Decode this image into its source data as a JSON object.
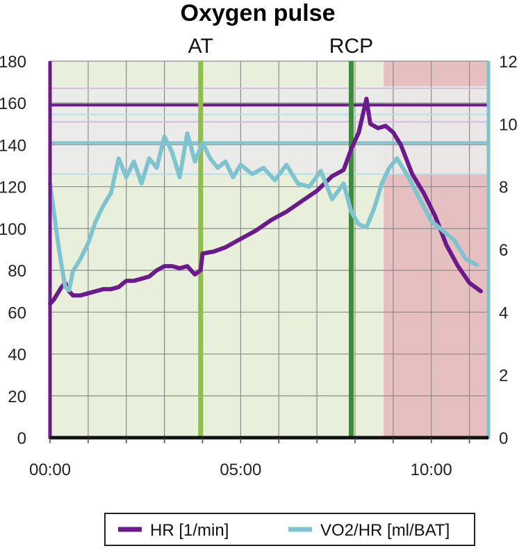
{
  "chart_data": {
    "type": "line",
    "title": "Oxygen pulse",
    "x_ticks": [
      "00:00",
      "05:00",
      "10:00"
    ],
    "x_range_minutes": [
      0,
      11.5
    ],
    "y_left": {
      "ylim": [
        0,
        180
      ],
      "ticks": [
        0,
        20,
        40,
        60,
        80,
        100,
        120,
        140,
        160,
        180
      ]
    },
    "y_right": {
      "ylim": [
        0,
        12
      ],
      "ticks": [
        0,
        2,
        4,
        6,
        8,
        10,
        12
      ]
    },
    "grid": true,
    "legend_position": "bottom",
    "zones": [
      {
        "from_min": 0,
        "to_min": 8.75,
        "color": "#e8f0dc"
      },
      {
        "from_min": 8.75,
        "to_min": 11.5,
        "color": "#e6c0c0"
      }
    ],
    "reference_bands": [
      {
        "axis": "left",
        "from": 126,
        "to": 168,
        "color": "#ebebeb"
      }
    ],
    "reference_lines": [
      {
        "axis": "left",
        "value": 159,
        "color": "#6a1a8a",
        "width": 4
      },
      {
        "axis": "left",
        "value": 167,
        "color": "#d8b8e4",
        "width": 2
      },
      {
        "axis": "left",
        "value": 151,
        "color": "#d8b8e4",
        "width": 2
      },
      {
        "axis": "right",
        "value": 9.4,
        "color": "#7ec4cf",
        "width": 4
      },
      {
        "axis": "right",
        "value": 10.3,
        "color": "#b9e0e6",
        "width": 2
      },
      {
        "axis": "right",
        "value": 8.4,
        "color": "#b9e0e6",
        "width": 2
      }
    ],
    "markers": [
      {
        "label": "AT",
        "x_min": 3.95,
        "color": "#8fc043"
      },
      {
        "label": "RCP",
        "x_min": 7.9,
        "color": "#3f8a3a"
      }
    ],
    "series": [
      {
        "name": "HR [1/min]",
        "axis": "left",
        "color": "#6a1a8a",
        "x": [
          0.0,
          0.1,
          0.2,
          0.3,
          0.4,
          0.5,
          0.6,
          0.8,
          1.0,
          1.2,
          1.4,
          1.6,
          1.8,
          2.0,
          2.2,
          2.4,
          2.6,
          2.8,
          3.0,
          3.2,
          3.4,
          3.6,
          3.8,
          3.95,
          4.0,
          4.3,
          4.6,
          5.0,
          5.4,
          5.8,
          6.2,
          6.6,
          7.0,
          7.4,
          7.7,
          7.9,
          8.1,
          8.2,
          8.3,
          8.4,
          8.6,
          8.8,
          9.0,
          9.2,
          9.5,
          9.8,
          10.1,
          10.4,
          10.7,
          11.0,
          11.3
        ],
        "values": [
          64,
          66,
          69,
          72,
          74,
          70,
          68,
          68,
          69,
          70,
          71,
          71,
          72,
          75,
          75,
          76,
          77,
          80,
          82,
          82,
          81,
          82,
          78,
          80,
          88,
          89,
          91,
          95,
          99,
          104,
          108,
          113,
          118,
          125,
          128,
          138,
          146,
          154,
          162,
          150,
          148,
          149,
          146,
          140,
          126,
          117,
          106,
          92,
          82,
          74,
          70
        ]
      },
      {
        "name": "VO2/HR [ml/BAT]",
        "axis": "right",
        "color": "#7ec4cf",
        "x": [
          0.0,
          0.1,
          0.2,
          0.3,
          0.4,
          0.5,
          0.6,
          0.8,
          1.0,
          1.2,
          1.4,
          1.6,
          1.8,
          2.0,
          2.2,
          2.4,
          2.6,
          2.8,
          3.0,
          3.2,
          3.4,
          3.6,
          3.8,
          4.0,
          4.2,
          4.4,
          4.6,
          4.8,
          5.0,
          5.3,
          5.6,
          5.9,
          6.2,
          6.5,
          6.8,
          7.1,
          7.4,
          7.7,
          7.9,
          8.1,
          8.3,
          8.5,
          8.7,
          8.9,
          9.1,
          9.4,
          9.7,
          10.0,
          10.3,
          10.6,
          10.9,
          11.2
        ],
        "values": [
          8.1,
          7.2,
          6.3,
          5.5,
          4.8,
          4.7,
          5.3,
          5.7,
          6.2,
          6.9,
          7.4,
          7.8,
          8.9,
          8.3,
          8.8,
          8.1,
          8.9,
          8.6,
          9.6,
          9.1,
          8.3,
          9.7,
          8.8,
          9.4,
          8.9,
          8.6,
          8.8,
          8.3,
          8.7,
          8.4,
          8.6,
          8.2,
          8.7,
          8.1,
          8.0,
          8.5,
          7.6,
          8.1,
          7.2,
          6.8,
          6.7,
          7.3,
          8.1,
          8.6,
          8.9,
          8.3,
          7.6,
          6.9,
          6.6,
          6.3,
          5.7,
          5.5
        ]
      }
    ]
  }
}
